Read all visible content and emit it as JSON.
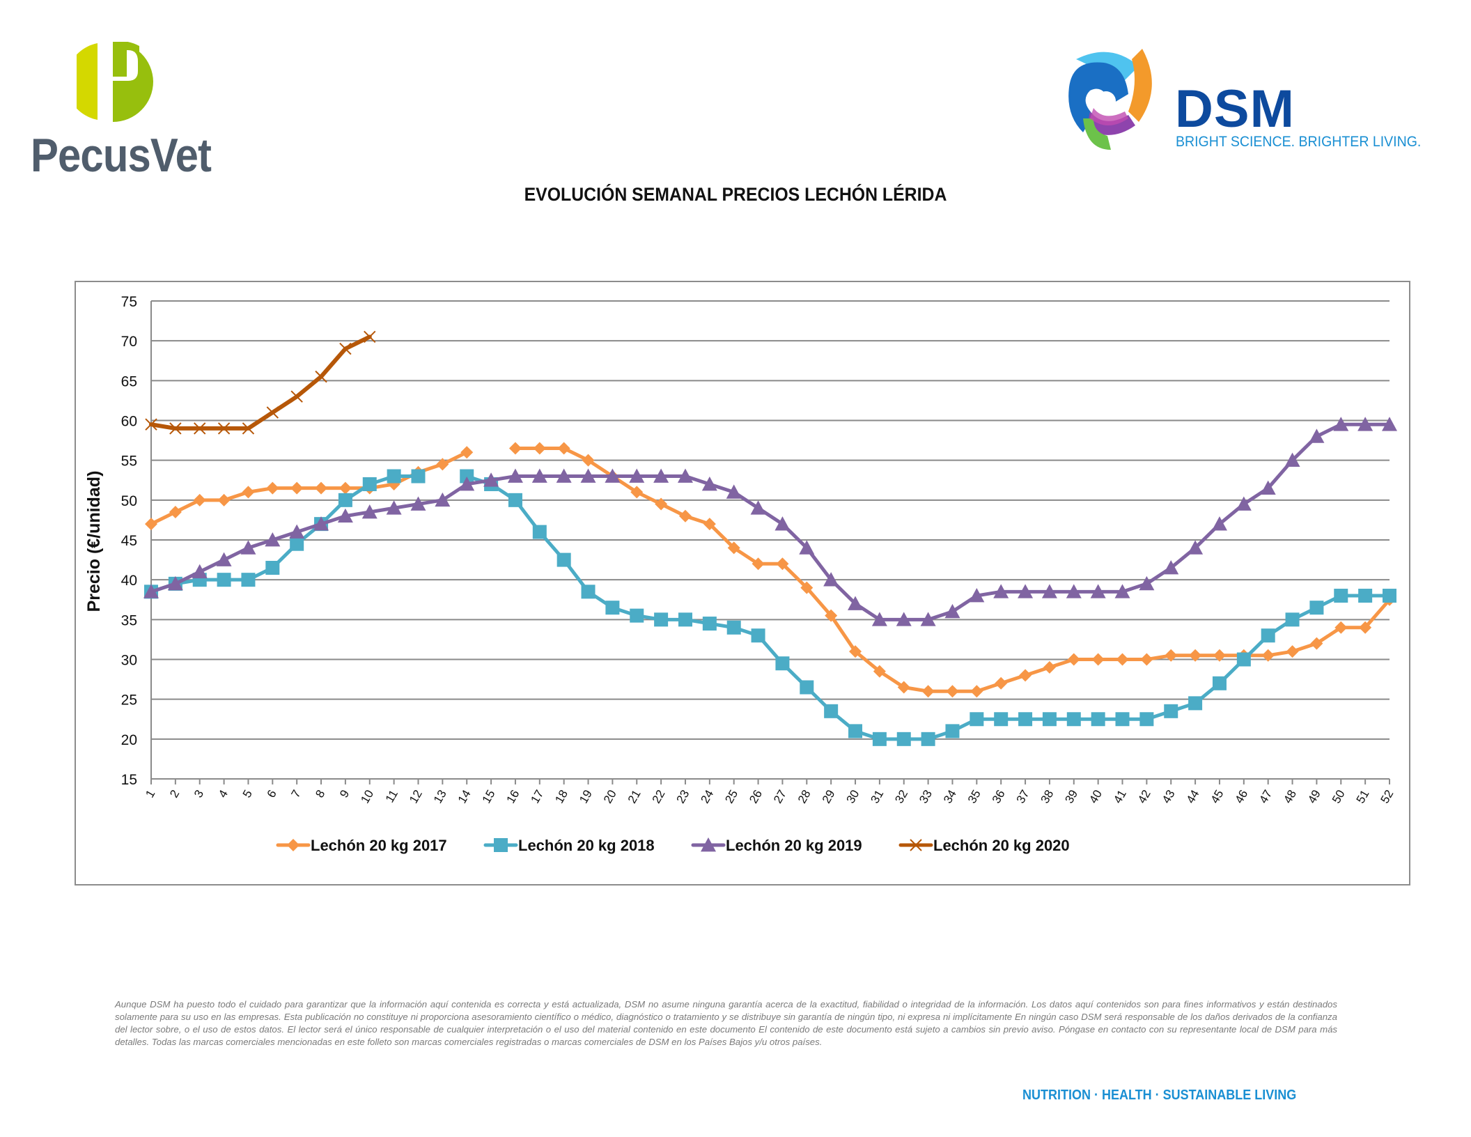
{
  "header": {
    "left_logo_text": "PecusVet",
    "right_logo_text": "DSM",
    "right_logo_tagline": "BRIGHT SCIENCE. BRIGHTER LIVING."
  },
  "colors": {
    "s2017": "#f79646",
    "s2018": "#4bacc6",
    "s2019": "#8064a2",
    "s2020": "#b65708",
    "pecus_green_light": "#d4d800",
    "pecus_green_dark": "#97bf0d",
    "pecus_text": "#505d6c",
    "dsm_blue": "#0d4a9e",
    "dsm_light_blue": "#1a8fd3"
  },
  "chart_data": {
    "type": "line",
    "title": "EVOLUCIÓN SEMANAL PRECIOS LECHÓN LÉRIDA",
    "xlabel": "",
    "ylabel": "Precio (€/unidad)",
    "ylim": [
      15,
      75
    ],
    "yticks": [
      15,
      20,
      25,
      30,
      35,
      40,
      45,
      50,
      55,
      60,
      65,
      70,
      75
    ],
    "grid": true,
    "legend_position": "bottom",
    "x": [
      1,
      2,
      3,
      4,
      5,
      6,
      7,
      8,
      9,
      10,
      11,
      12,
      13,
      14,
      15,
      16,
      17,
      18,
      19,
      20,
      21,
      22,
      23,
      24,
      25,
      26,
      27,
      28,
      29,
      30,
      31,
      32,
      33,
      34,
      35,
      36,
      37,
      38,
      39,
      40,
      41,
      42,
      43,
      44,
      45,
      46,
      47,
      48,
      49,
      50,
      51,
      52
    ],
    "series": [
      {
        "name": "Lechón 20 kg 2017",
        "marker": "diamond",
        "values": [
          47,
          48.5,
          50,
          50,
          51,
          51.5,
          51.5,
          51.5,
          51.5,
          51.5,
          52,
          53.5,
          54.5,
          56,
          null,
          56.5,
          56.5,
          56.5,
          55,
          53,
          51,
          49.5,
          48,
          47,
          44,
          42,
          42,
          39,
          35.5,
          31,
          28.5,
          26.5,
          26,
          26,
          26,
          27,
          28,
          29,
          30,
          30,
          30,
          30,
          30.5,
          30.5,
          30.5,
          30.5,
          30.5,
          31,
          32,
          34,
          34,
          37.5
        ]
      },
      {
        "name": "Lechón 20 kg 2018",
        "marker": "square",
        "values": [
          38.5,
          39.5,
          40,
          40,
          40,
          41.5,
          44.5,
          47,
          50,
          52,
          53,
          53,
          null,
          53,
          52,
          50,
          46,
          42.5,
          38.5,
          36.5,
          35.5,
          35,
          35,
          34.5,
          34,
          33,
          29.5,
          26.5,
          23.5,
          21,
          20,
          20,
          20,
          21,
          22.5,
          22.5,
          22.5,
          22.5,
          22.5,
          22.5,
          22.5,
          22.5,
          23.5,
          24.5,
          27,
          30,
          33,
          35,
          36.5,
          38,
          38,
          38
        ]
      },
      {
        "name": "Lechón 20 kg 2019",
        "marker": "triangle",
        "values": [
          38.5,
          39.5,
          41,
          42.5,
          44,
          45,
          46,
          47,
          48,
          48.5,
          49,
          49.5,
          50,
          52,
          52.5,
          53,
          53,
          53,
          53,
          53,
          53,
          53,
          53,
          52,
          51,
          49,
          47,
          44,
          40,
          37,
          35,
          35,
          35,
          36,
          38,
          38.5,
          38.5,
          38.5,
          38.5,
          38.5,
          38.5,
          39.5,
          41.5,
          44,
          47,
          49.5,
          51.5,
          55,
          58,
          59.5,
          59.5,
          59.5
        ]
      },
      {
        "name": "Lechón 20 kg 2020",
        "marker": "x",
        "values": [
          59.5,
          59,
          59,
          59,
          59,
          61,
          63,
          65.5,
          69,
          70.5
        ]
      }
    ]
  },
  "footer": {
    "disclaimer": "Aunque DSM ha puesto todo el cuidado para garantizar que la información aquí contenida es correcta y está actualizada, DSM no asume ninguna garantía acerca de la exactitud, fiabilidad o integridad de la información. Los datos aquí contenidos son para fines informativos y están destinados solamente para su uso en las empresas. Esta publicación no constituye ni proporciona asesoramiento científico o médico, diagnóstico o tratamiento y se distribuye sin garantía de ningún tipo, ni expresa ni implícitamente En ningún caso DSM será responsable de los daños derivados de la confianza del lector sobre, o el uso de estos datos. El lector será el único responsable de cualquier interpretación o el uso del material contenido en este documento El contenido de este documento está sujeto a cambios sin previo aviso. Póngase en contacto con su representante local de DSM para más detalles. Todas las marcas comerciales mencionadas en este folleto son marcas comerciales registradas o marcas comerciales de DSM en los Países Bajos y/u otros países.",
    "tagline": "NUTRITION  ·  HEALTH  ·  SUSTAINABLE LIVING"
  }
}
